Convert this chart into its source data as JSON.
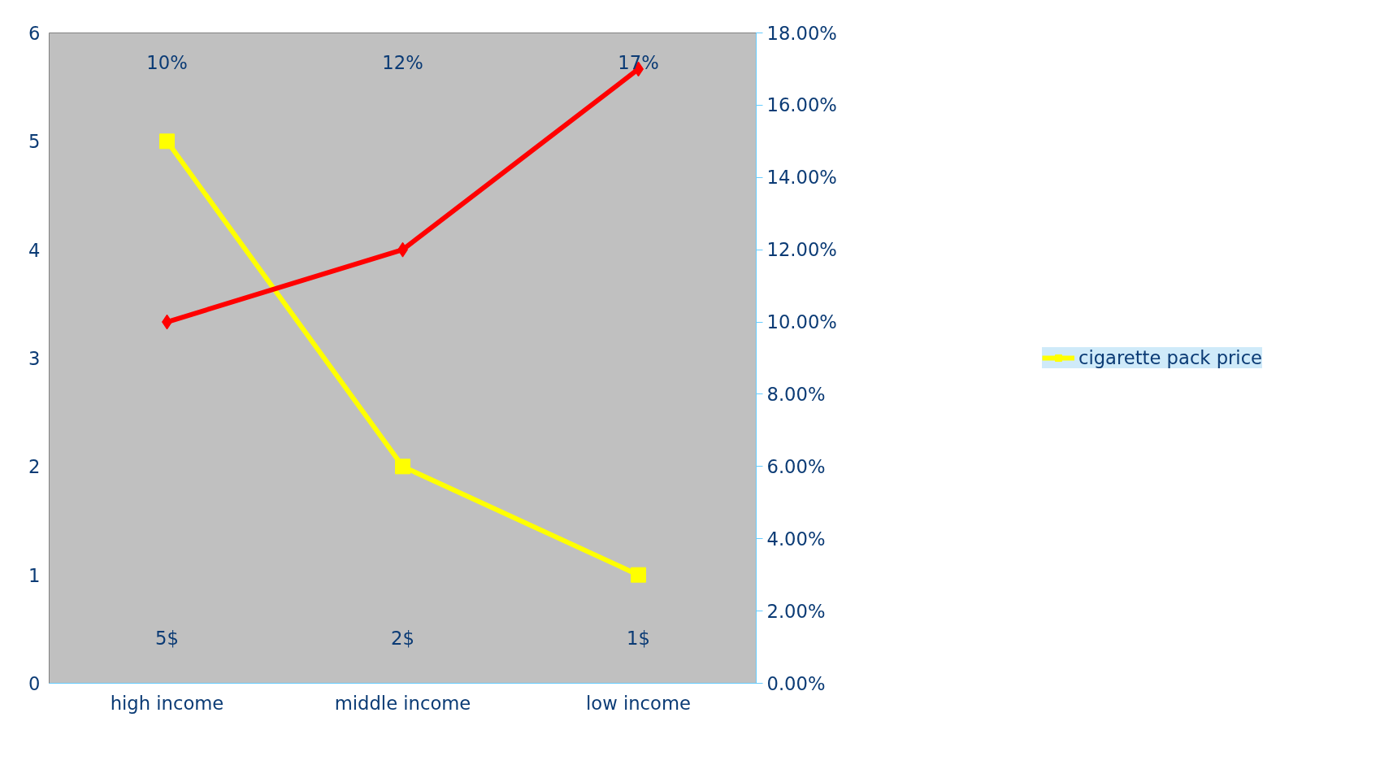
{
  "chart_data": {
    "type": "line",
    "categories": [
      "high income",
      "middle income",
      "low income"
    ],
    "series": [
      {
        "name": "cigarette pack price",
        "color": "#ffff00",
        "values": [
          5,
          2,
          1
        ],
        "marker": "square"
      },
      {
        "color": "#ff0000",
        "values": [
          10,
          12,
          17
        ],
        "axis": "y2",
        "marker": "diamond"
      }
    ],
    "ylim": [
      0,
      6
    ],
    "yticks": [
      0,
      1,
      2,
      3,
      4,
      5,
      6
    ],
    "y2lim": [
      0,
      18
    ],
    "y2ticks": [
      {
        "value": 0,
        "label": "0.00%"
      },
      {
        "value": 2,
        "label": "2.00%"
      },
      {
        "value": 4,
        "label": "4.00%"
      },
      {
        "value": 6,
        "label": "6.00%"
      },
      {
        "value": 8,
        "label": "8.00%"
      },
      {
        "value": 10,
        "label": "10.00%"
      },
      {
        "value": 12,
        "label": "12.00%"
      },
      {
        "value": 14,
        "label": "14.00%"
      },
      {
        "value": 16,
        "label": "16.00%"
      },
      {
        "value": 18,
        "label": "18.00%"
      }
    ],
    "annotations": [
      "10%",
      "12%",
      "17%",
      "5$",
      "2$",
      "1$"
    ],
    "legend": "right",
    "grid": false,
    "line_style": "solid"
  }
}
